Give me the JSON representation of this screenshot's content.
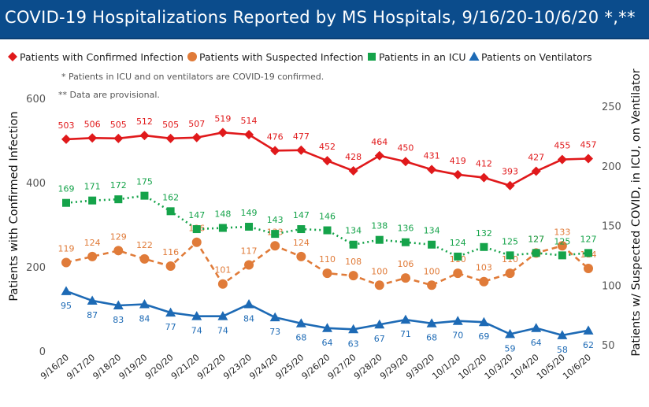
{
  "header": {
    "title": "COVID-19 Hospitalizations Reported by MS Hospitals, 9/16/20-10/6/20 *,**"
  },
  "notes": {
    "icu_vent": "* Patients in ICU and on ventilators are COVID-19 confirmed.",
    "provisional": "** Data are provisional."
  },
  "colors": {
    "header_bg": "#0b4c8c",
    "confirmed": "#e0191b",
    "suspected": "#e07b39",
    "icu": "#15a34a",
    "ventilators": "#1d6ab5"
  },
  "chart_data": {
    "type": "line",
    "title": "COVID-19 Hospitalizations Reported by MS Hospitals, 9/16/20-10/6/20 *,**",
    "x": [
      "9/16/20",
      "9/17/20",
      "9/18/20",
      "9/19/20",
      "9/20/20",
      "9/21/20",
      "9/22/20",
      "9/23/20",
      "9/24/20",
      "9/25/20",
      "9/26/20",
      "9/27/20",
      "9/28/20",
      "9/29/20",
      "9/30/20",
      "10/1/20",
      "10/2/20",
      "10/3/20",
      "10/4/20",
      "10/5/20",
      "10/6/20"
    ],
    "ylabel": "Patients with Confirmed Infection",
    "ylabel_right": "Patients w/ Suspected COVID, in ICU, on Ventilator",
    "ylim": [
      0,
      600
    ],
    "ylim_right": [
      50,
      250
    ],
    "yticks": [
      "0",
      "200",
      "400",
      "600"
    ],
    "yticks_right": [
      "50",
      "100",
      "150",
      "200",
      "250"
    ],
    "grid": false,
    "legend_placement": "top-left",
    "series": [
      {
        "name": "Patients with Confirmed Infection",
        "axis": "left",
        "marker": "diamond",
        "style": "solid",
        "values": [
          503,
          506,
          505,
          512,
          505,
          507,
          519,
          514,
          476,
          477,
          452,
          428,
          464,
          450,
          431,
          419,
          412,
          393,
          427,
          455,
          457
        ]
      },
      {
        "name": "Patients with Suspected Infection",
        "axis": "right",
        "marker": "circle",
        "style": "dashed",
        "values": [
          119,
          124,
          129,
          122,
          116,
          136,
          101,
          117,
          133,
          124,
          110,
          108,
          100,
          106,
          100,
          110,
          103,
          110,
          127,
          133,
          114
        ]
      },
      {
        "name": "Patients in an ICU",
        "axis": "right",
        "marker": "square",
        "style": "dotted",
        "values": [
          169,
          171,
          172,
          175,
          162,
          147,
          148,
          149,
          143,
          147,
          146,
          134,
          138,
          136,
          134,
          124,
          132,
          125,
          127,
          125,
          127
        ]
      },
      {
        "name": "Patients on Ventilators",
        "axis": "right",
        "marker": "triangle",
        "style": "solid",
        "values": [
          95,
          87,
          83,
          84,
          77,
          74,
          74,
          84,
          73,
          68,
          64,
          63,
          67,
          71,
          68,
          70,
          69,
          59,
          64,
          58,
          62
        ]
      }
    ]
  }
}
